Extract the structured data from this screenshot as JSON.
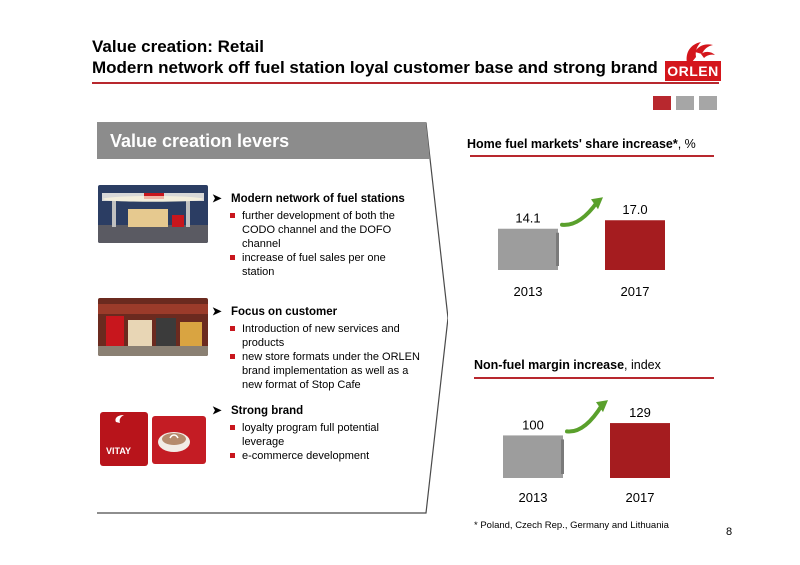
{
  "header": {
    "title_line1": "Value creation: Retail",
    "title_line2": "Modern network off fuel station loyal customer base and strong brand",
    "logo_text": "ORLEN",
    "squares": [
      "#b8282e",
      "#a6a6a6",
      "#a6a6a6"
    ]
  },
  "levers": {
    "heading": "Value creation levers",
    "sections": [
      {
        "title": "Modern network of fuel stations",
        "bullets": [
          "further development of both the CODO channel and the DOFO channel",
          "increase of fuel sales per one station"
        ]
      },
      {
        "title": "Focus on customer",
        "bullets": [
          "Introduction of new services and products",
          "new store formats under the ORLEN brand  implementation as well as a new format of Stop Cafe"
        ]
      },
      {
        "title": "Strong brand",
        "bullets": [
          "loyalty program full potential leverage",
          "e-commerce development"
        ]
      }
    ]
  },
  "charts": [
    {
      "title_bold": "Home fuel markets' share increase*",
      "title_rest": ", %"
    },
    {
      "title_bold": "Non-fuel margin increase",
      "title_rest": ", index"
    }
  ],
  "chart_data": [
    {
      "type": "bar",
      "categories": [
        "2013",
        "2017"
      ],
      "values": [
        14.1,
        17.0
      ],
      "labels": [
        "14.1",
        "17.0"
      ],
      "colors": [
        "#9d9d9d",
        "#a51c1f"
      ],
      "title": "Home fuel markets' share increase*, %",
      "ylim": [
        0,
        20.5
      ],
      "grid": false
    },
    {
      "type": "bar",
      "categories": [
        "2013",
        "2017"
      ],
      "values": [
        100,
        129
      ],
      "labels": [
        "100",
        "129"
      ],
      "colors": [
        "#9d9d9d",
        "#a51c1f"
      ],
      "title": "Non-fuel margin increase, index",
      "ylim": [
        0,
        155
      ],
      "grid": false
    }
  ],
  "footnote": "* Poland, Czech Rep., Germany and Lithuania",
  "page_number": "8"
}
